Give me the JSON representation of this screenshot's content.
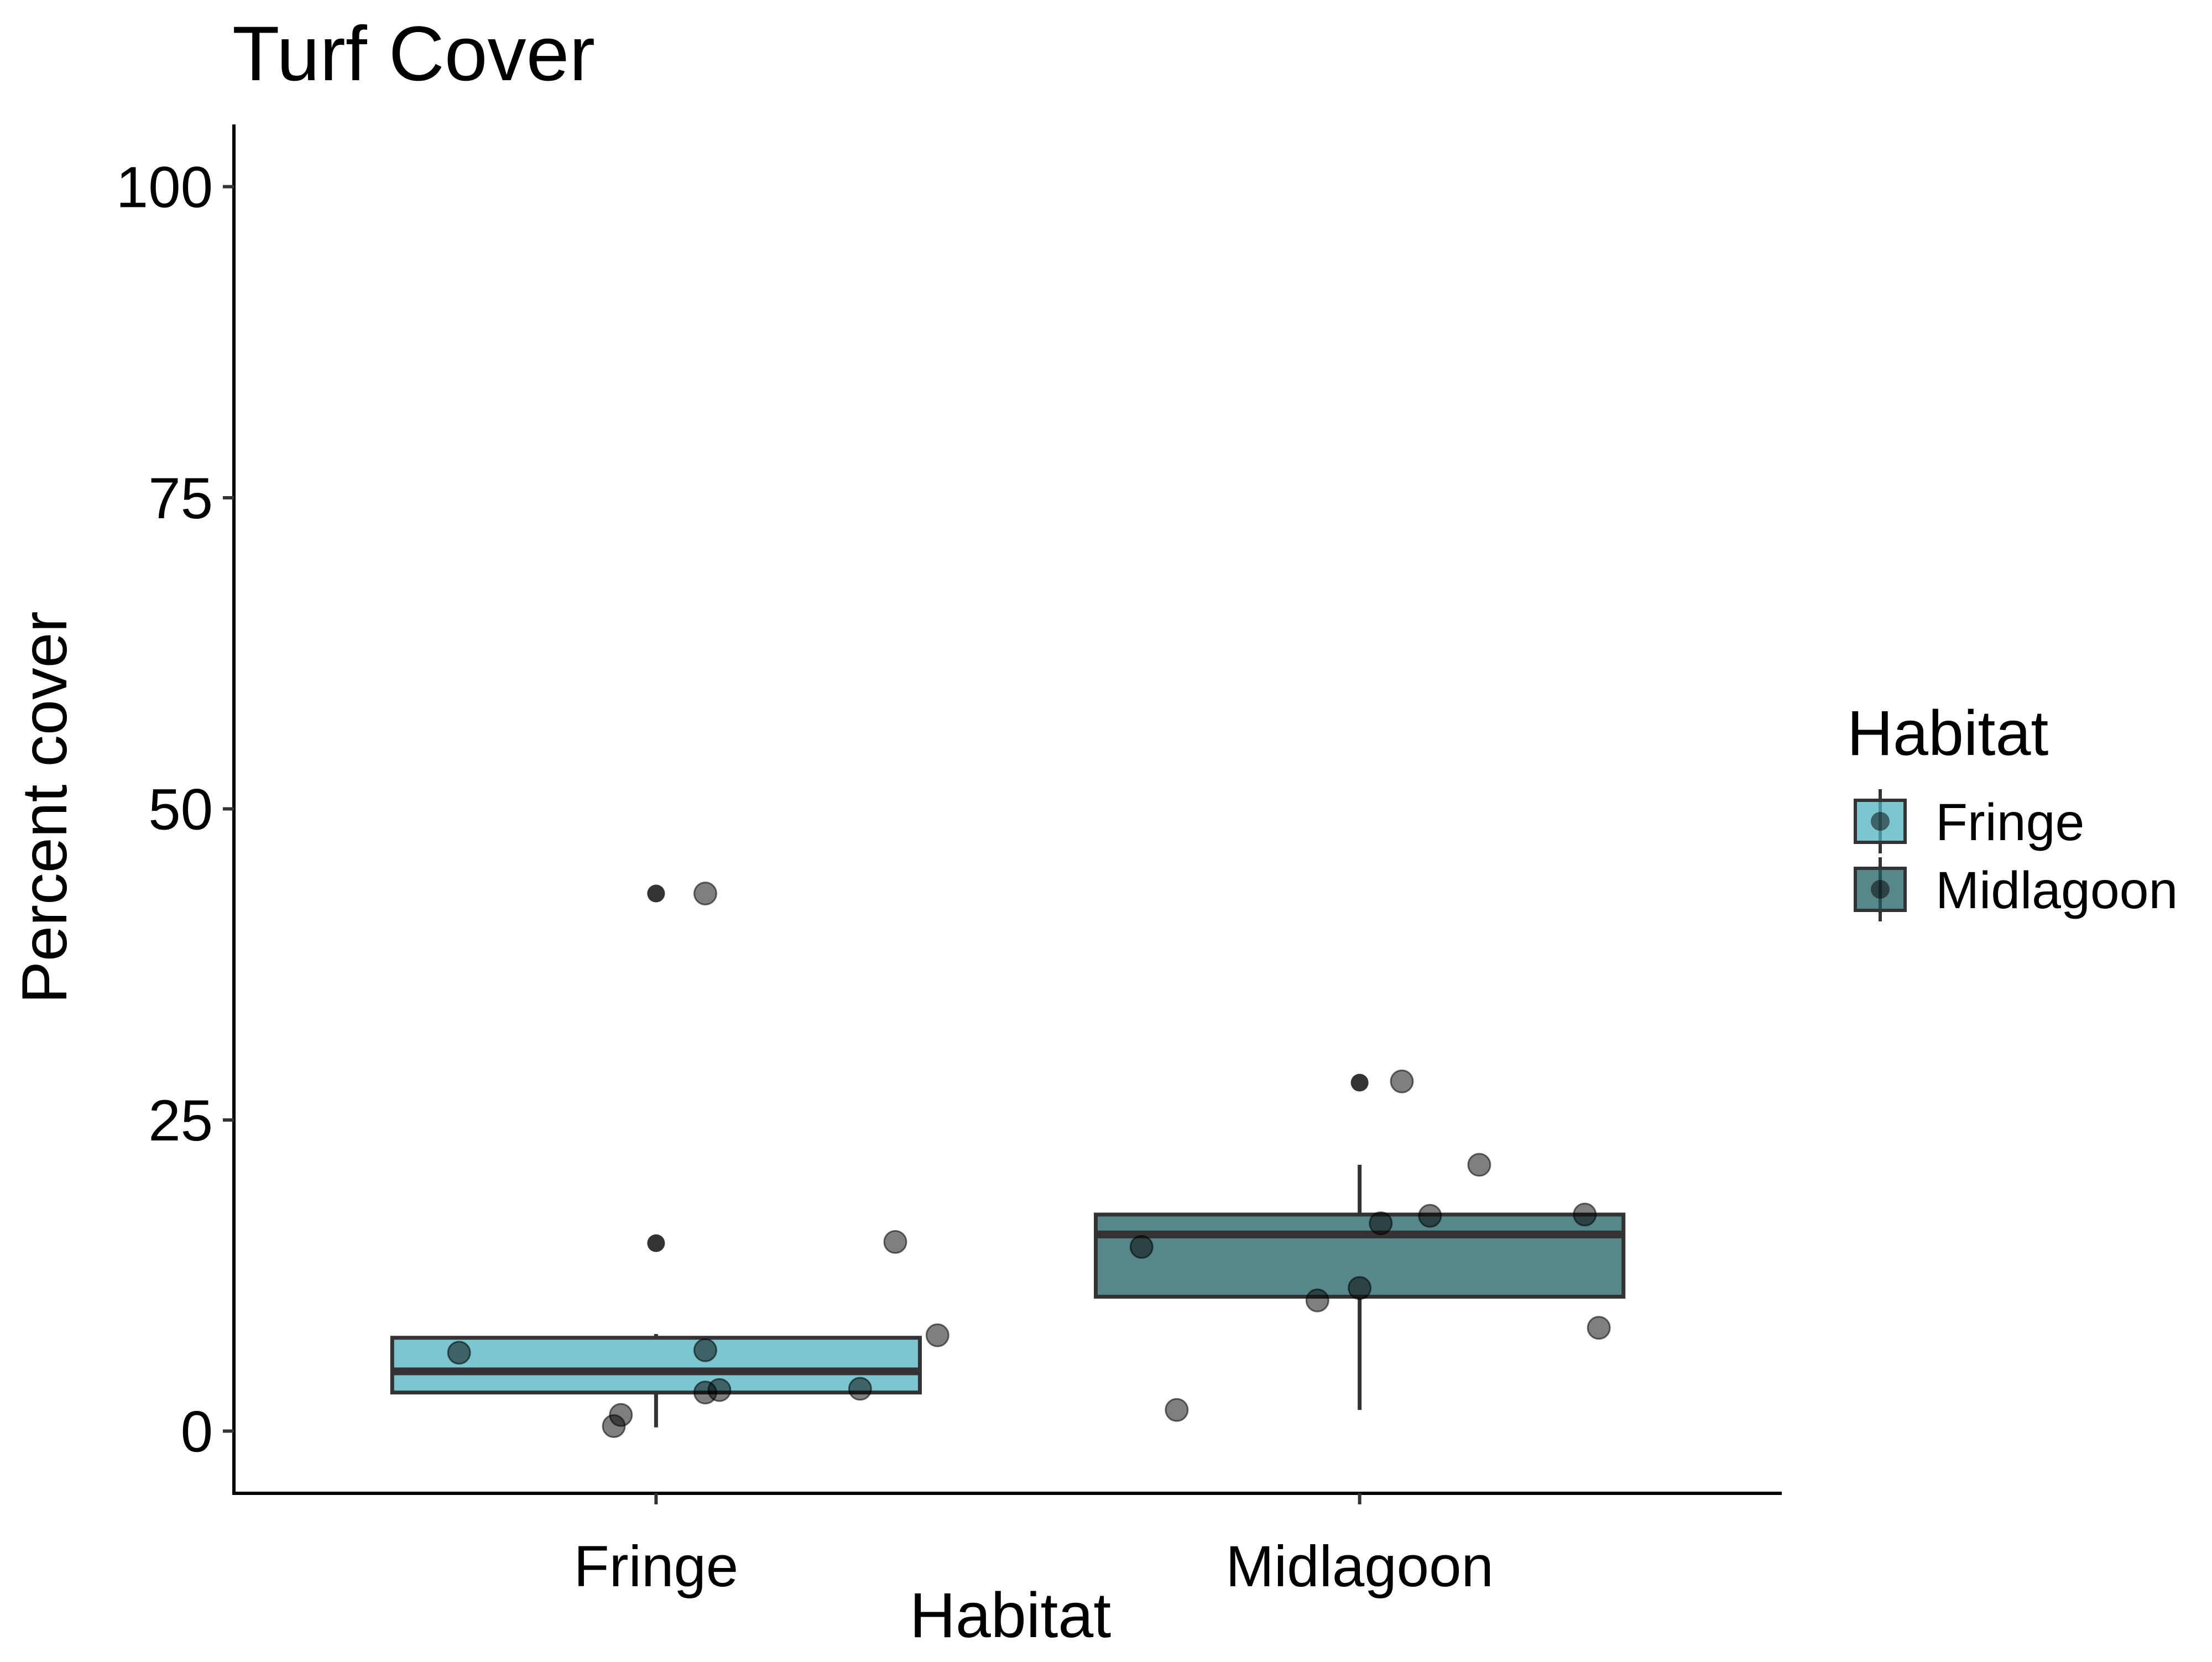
{
  "chart_data": {
    "type": "boxplot",
    "title": "Turf Cover",
    "xlabel": "Habitat",
    "ylabel": "Percent cover",
    "categories": [
      "Fringe",
      "Midlagoon"
    ],
    "ylim": [
      -5,
      105
    ],
    "yticks": [
      0,
      25,
      50,
      75,
      100
    ],
    "grid": false,
    "legend": {
      "title": "Habitat",
      "position": "right",
      "entries": [
        {
          "label": "Fringe",
          "color": "#4fb3bf"
        },
        {
          "label": "Midlagoon",
          "color": "#1f5f63"
        }
      ]
    },
    "boxes": [
      {
        "category": "Fringe",
        "color": "#4fb3bf",
        "whisker_low": 0.3,
        "q1": 3.1,
        "median": 4.8,
        "q3": 7.5,
        "whisker_high": 7.8,
        "outliers": [
          15.1,
          43.2
        ]
      },
      {
        "category": "Midlagoon",
        "color": "#1f5f63",
        "whisker_low": 1.7,
        "q1": 10.8,
        "median": 15.8,
        "q3": 17.4,
        "whisker_high": 21.4,
        "outliers": [
          28.0
        ]
      }
    ],
    "points": [
      {
        "category": "Fringe",
        "x": 0.72,
        "y": 6.3
      },
      {
        "category": "Fringe",
        "x": 0.94,
        "y": 0.4
      },
      {
        "category": "Fringe",
        "x": 0.95,
        "y": 1.3
      },
      {
        "category": "Fringe",
        "x": 1.07,
        "y": 43.2
      },
      {
        "category": "Fringe",
        "x": 1.07,
        "y": 3.1
      },
      {
        "category": "Fringe",
        "x": 1.07,
        "y": 6.5
      },
      {
        "category": "Fringe",
        "x": 1.09,
        "y": 3.3
      },
      {
        "category": "Fringe",
        "x": 1.29,
        "y": 3.4
      },
      {
        "category": "Fringe",
        "x": 1.34,
        "y": 15.2
      },
      {
        "category": "Fringe",
        "x": 1.4,
        "y": 7.7
      },
      {
        "category": "Midlagoon",
        "x": 1.69,
        "y": 14.8
      },
      {
        "category": "Midlagoon",
        "x": 1.74,
        "y": 1.7
      },
      {
        "category": "Midlagoon",
        "x": 1.94,
        "y": 10.5
      },
      {
        "category": "Midlagoon",
        "x": 2.0,
        "y": 11.5
      },
      {
        "category": "Midlagoon",
        "x": 2.03,
        "y": 16.7
      },
      {
        "category": "Midlagoon",
        "x": 2.06,
        "y": 28.1
      },
      {
        "category": "Midlagoon",
        "x": 2.1,
        "y": 17.3
      },
      {
        "category": "Midlagoon",
        "x": 2.17,
        "y": 21.4
      },
      {
        "category": "Midlagoon",
        "x": 2.32,
        "y": 17.4
      },
      {
        "category": "Midlagoon",
        "x": 2.34,
        "y": 8.3
      }
    ]
  }
}
